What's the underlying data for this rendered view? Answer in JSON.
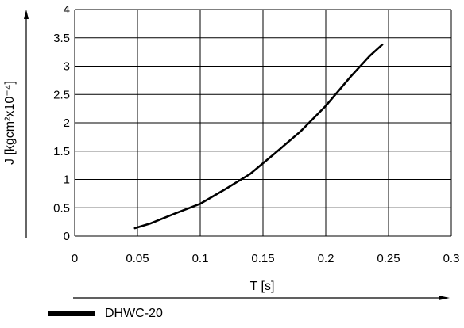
{
  "chart_data": {
    "type": "line",
    "title": "",
    "xlabel": "T [s]",
    "ylabel": "J [kgcm²x10⁻⁴]",
    "xlim": [
      0,
      0.3
    ],
    "ylim": [
      0,
      4
    ],
    "x_ticks": [
      "0",
      "0.05",
      "0.1",
      "0.15",
      "0.2",
      "0.25",
      "0.3"
    ],
    "y_ticks": [
      "0",
      "0.5",
      "1",
      "1.5",
      "2",
      "2.5",
      "3",
      "3.5",
      "4"
    ],
    "grid": true,
    "legend_position": "bottom-left",
    "series": [
      {
        "name": "DHWC-20",
        "color": "#000000",
        "x": [
          0.048,
          0.06,
          0.08,
          0.1,
          0.12,
          0.14,
          0.16,
          0.18,
          0.2,
          0.22,
          0.235,
          0.245
        ],
        "y": [
          0.14,
          0.22,
          0.4,
          0.57,
          0.83,
          1.1,
          1.47,
          1.85,
          2.3,
          2.82,
          3.18,
          3.38
        ]
      }
    ]
  }
}
